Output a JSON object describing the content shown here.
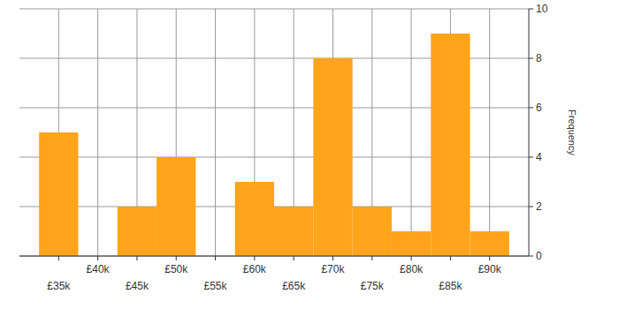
{
  "chart_data": {
    "type": "histogram",
    "bins": [
      32500,
      37500,
      42500,
      47500,
      52500,
      57500,
      62500,
      67500,
      72500,
      77500,
      82500,
      87500,
      92500
    ],
    "values": [
      5,
      0,
      2,
      4,
      0,
      3,
      2,
      8,
      2,
      1,
      9,
      1
    ],
    "color": "#ffa41b",
    "xlim": [
      30000,
      95000
    ],
    "xticks": [
      {
        "value": 35000,
        "label": "£35k"
      },
      {
        "value": 40000,
        "label": "£40k"
      },
      {
        "value": 45000,
        "label": "£45k"
      },
      {
        "value": 50000,
        "label": "£50k"
      },
      {
        "value": 55000,
        "label": "£55k"
      },
      {
        "value": 60000,
        "label": "£60k"
      },
      {
        "value": 65000,
        "label": "£65k"
      },
      {
        "value": 70000,
        "label": "£70k"
      },
      {
        "value": 75000,
        "label": "£75k"
      },
      {
        "value": 80000,
        "label": "£80k"
      },
      {
        "value": 85000,
        "label": "£85k"
      },
      {
        "value": 90000,
        "label": "£90k"
      }
    ],
    "ylim": [
      0,
      10
    ],
    "yticks": [
      0,
      2,
      4,
      6,
      8,
      10
    ],
    "y_label": "Frequency",
    "grid": true
  }
}
